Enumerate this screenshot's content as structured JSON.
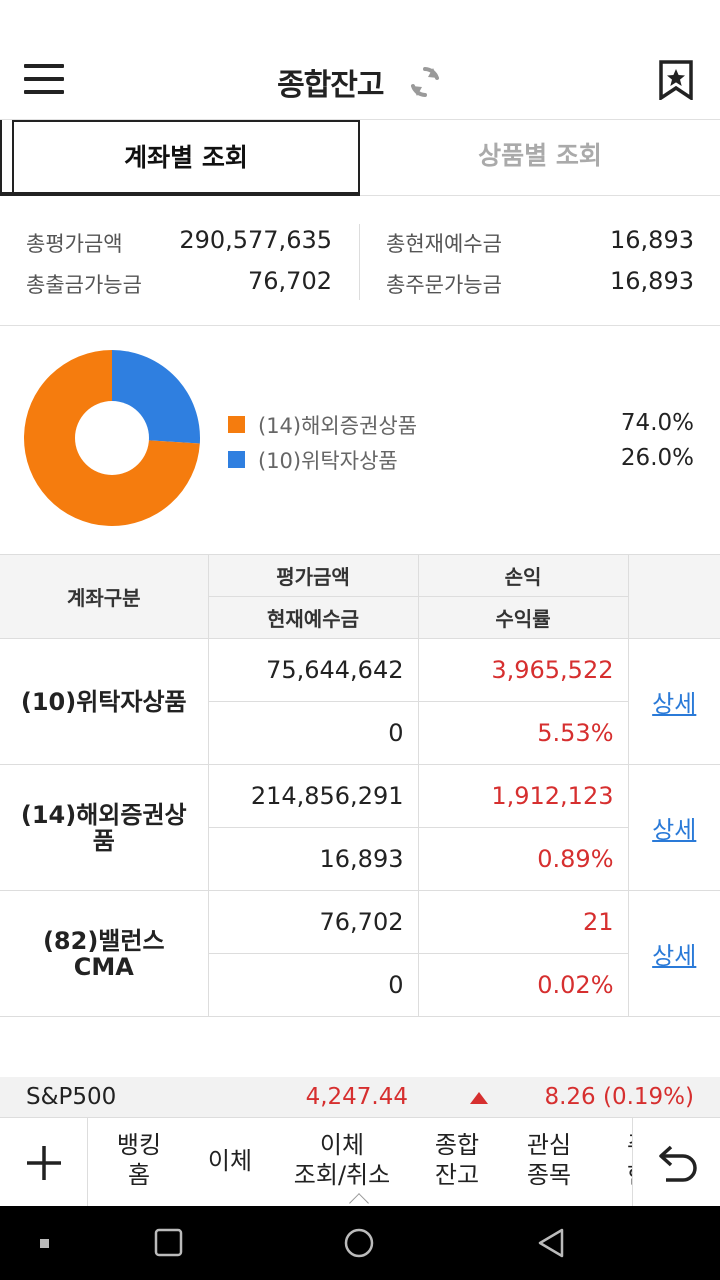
{
  "header": {
    "title": "종합잔고",
    "icons": {
      "menu": "hamburger-icon",
      "refresh": "refresh-icon",
      "bookmark": "bookmark-star-icon"
    }
  },
  "tabs": [
    {
      "label": "계좌별 조회",
      "active": true
    },
    {
      "label": "상품별 조회",
      "active": false
    }
  ],
  "summary": {
    "total_eval_label": "총평가금액",
    "total_eval_value": "290,577,635",
    "withdrawable_label": "총출금가능금",
    "withdrawable_value": "76,702",
    "cash_label": "총현재예수금",
    "cash_value": "16,893",
    "orderable_label": "총주문가능금",
    "orderable_value": "16,893"
  },
  "chart_data": {
    "type": "pie",
    "donut": true,
    "categories": [
      "(14)해외증권상품",
      "(10)위탁자상품"
    ],
    "values": [
      74.0,
      26.0
    ],
    "labels": [
      "74.0%",
      "26.0%"
    ],
    "colors": [
      "#f57c0e",
      "#2f7fe0"
    ],
    "legend_position": "right"
  },
  "table": {
    "headers": {
      "account": "계좌구분",
      "eval": "평가금액",
      "pnl": "손익",
      "cash": "현재예수금",
      "rate": "수익률"
    },
    "rows": [
      {
        "account": "(10)위탁자상품",
        "eval": "75,644,642",
        "pnl": "3,965,522",
        "cash": "0",
        "rate": "5.53%",
        "detail": "상세"
      },
      {
        "account": "(14)해외증권상품",
        "eval": "214,856,291",
        "pnl": "1,912,123",
        "cash": "16,893",
        "rate": "0.89%",
        "detail": "상세"
      },
      {
        "account": "(82)밸런스 CMA",
        "eval": "76,702",
        "pnl": "21",
        "cash": "0",
        "rate": "0.02%",
        "detail": "상세"
      }
    ]
  },
  "ticker": {
    "name": "S&P500",
    "price": "4,247.44",
    "change": "8.26 (0.19%)",
    "direction": "up"
  },
  "bottom_nav": {
    "items": [
      {
        "line1": "뱅킹",
        "line2": "홈"
      },
      {
        "line1": "이체",
        "line2": ""
      },
      {
        "line1": "이체",
        "line2": "조회/취소"
      },
      {
        "line1": "종합",
        "line2": "잔고"
      },
      {
        "line1": "관심",
        "line2": "종목"
      },
      {
        "line1": "주",
        "line2": "한"
      }
    ],
    "icons": {
      "plus": "plus-icon",
      "back": "back-arrow-icon"
    }
  },
  "system_nav": {
    "icons": [
      "dot-icon",
      "recent-apps-icon",
      "home-icon",
      "back-icon"
    ]
  },
  "colors": {
    "profit_red": "#d62f2f",
    "link_blue": "#2a7ad8",
    "orange": "#f57c0e",
    "blue": "#2f7fe0"
  }
}
